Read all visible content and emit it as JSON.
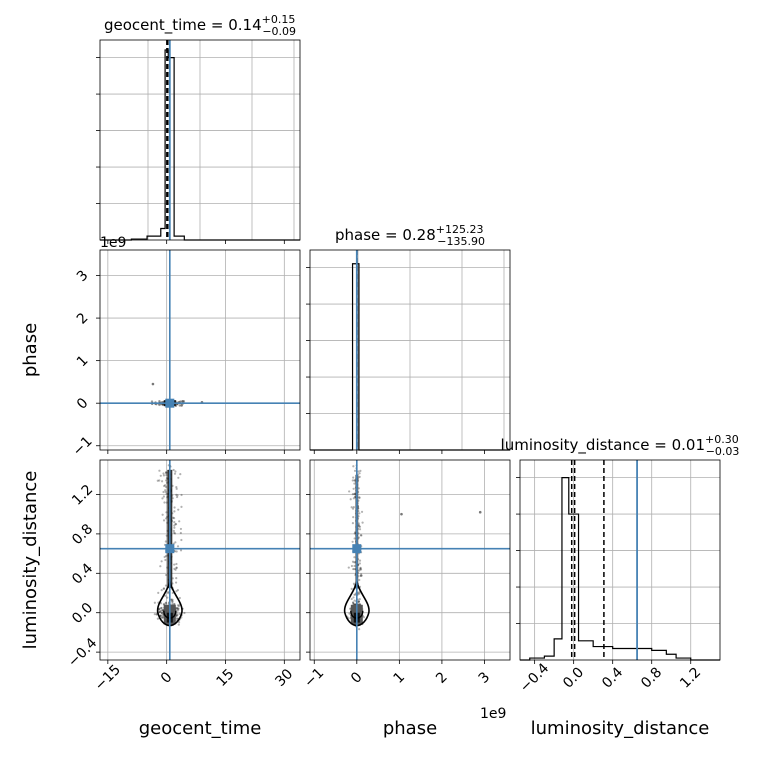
{
  "chart_data": {
    "type": "corner",
    "parameters": [
      "geocent_time",
      "phase",
      "luminosity_distance"
    ],
    "truth_color": "#4682b4",
    "line_color": "#000000",
    "panels": [
      {
        "kind": "hist",
        "row": 0,
        "col": 0,
        "parameter": "geocent_time",
        "title": "geocent_time = 0.14",
        "title_sup": "+0.15",
        "title_sub": "−0.09",
        "xlim": [
          -17,
          34
        ],
        "ylim": [
          0,
          1
        ],
        "quantiles": [
          0.05,
          0.14,
          0.29
        ],
        "truth": 0.8,
        "bins": [
          {
            "x0": -17,
            "x1": -13,
            "h": 0.0
          },
          {
            "x0": -13,
            "x1": -9,
            "h": 0.0
          },
          {
            "x0": -9,
            "x1": -5,
            "h": 0.005
          },
          {
            "x0": -5,
            "x1": -1.5,
            "h": 0.02
          },
          {
            "x0": -1.5,
            "x1": -0.4,
            "h": 0.06
          },
          {
            "x0": -0.4,
            "x1": 0.4,
            "h": 0.99
          },
          {
            "x0": 0.4,
            "x1": 1.9,
            "h": 0.95
          },
          {
            "x0": 1.9,
            "x1": 4.5,
            "h": 0.02
          },
          {
            "x0": 4.5,
            "x1": 34,
            "h": 0.0
          }
        ],
        "xticks": [],
        "yticks": []
      },
      {
        "kind": "scatter",
        "row": 1,
        "col": 0,
        "x": "geocent_time",
        "y": "phase",
        "xlim": [
          -17,
          34
        ],
        "ylim": [
          -1.1,
          3.6
        ],
        "truth_x": 0.8,
        "truth_y": 0.0,
        "cluster": {
          "cx": 0.5,
          "cy": 0.0,
          "sx": 2.5,
          "sy": 0.03
        },
        "offset_text": "1e9",
        "yticks": [
          "−1",
          "0",
          "1",
          "2",
          "3"
        ],
        "ytick_values": [
          -1,
          0,
          1,
          2,
          3
        ],
        "ylabel": "phase"
      },
      {
        "kind": "hist",
        "row": 1,
        "col": 1,
        "parameter": "phase",
        "title": "phase = 0.28",
        "title_sup": "+125.23",
        "title_sub": "−135.90",
        "xlim": [
          -1.1,
          3.6
        ],
        "ylim": [
          0,
          1
        ],
        "quantiles": [
          -0.0,
          0.0,
          0.0
        ],
        "truth": 0.0,
        "bins": [
          {
            "x0": -1.1,
            "x1": -0.1,
            "h": 0.0
          },
          {
            "x0": -0.1,
            "x1": 0.05,
            "h": 0.97
          },
          {
            "x0": 0.05,
            "x1": 3.6,
            "h": 0.0
          }
        ]
      },
      {
        "kind": "scatter",
        "row": 2,
        "col": 0,
        "x": "geocent_time",
        "y": "luminosity_distance",
        "xlim": [
          -17,
          34
        ],
        "ylim": [
          -0.48,
          1.55
        ],
        "truth_x": 0.8,
        "truth_y": 0.65,
        "xticks": [
          "−15",
          "0",
          "15",
          "30"
        ],
        "xtick_values": [
          -15,
          0,
          15,
          30
        ],
        "yticks": [
          "−0.4",
          "0.0",
          "0.4",
          "0.8",
          "1.2"
        ],
        "ytick_values": [
          -0.4,
          0,
          0.4,
          0.8,
          1.2
        ],
        "xlabel": "geocent_time",
        "ylabel": "luminosity_distance"
      },
      {
        "kind": "scatter",
        "row": 2,
        "col": 1,
        "x": "phase",
        "y": "luminosity_distance",
        "xlim": [
          -1.1,
          3.6
        ],
        "ylim": [
          -0.48,
          1.55
        ],
        "truth_x": 0.0,
        "truth_y": 0.65,
        "offset_text": "1e9",
        "xticks": [
          "−1",
          "0",
          "1",
          "2",
          "3"
        ],
        "xtick_values": [
          -1,
          0,
          1,
          2,
          3
        ],
        "xlabel": "phase"
      },
      {
        "kind": "hist",
        "row": 2,
        "col": 2,
        "parameter": "luminosity_distance",
        "title": "luminosity_distance = 0.01",
        "title_sup": "+0.30",
        "title_sub": "−0.03",
        "xlim": [
          -0.55,
          1.5
        ],
        "ylim": [
          0,
          1
        ],
        "quantiles": [
          -0.02,
          0.01,
          0.31
        ],
        "truth": 0.65,
        "bins": [
          {
            "x0": -0.55,
            "x1": -0.45,
            "h": 0.0
          },
          {
            "x0": -0.45,
            "x1": -0.3,
            "h": 0.01
          },
          {
            "x0": -0.3,
            "x1": -0.2,
            "h": 0.02
          },
          {
            "x0": -0.2,
            "x1": -0.12,
            "h": 0.11
          },
          {
            "x0": -0.12,
            "x1": -0.05,
            "h": 0.95
          },
          {
            "x0": -0.05,
            "x1": 0.05,
            "h": 0.76
          },
          {
            "x0": 0.05,
            "x1": 0.2,
            "h": 0.1
          },
          {
            "x0": 0.2,
            "x1": 0.4,
            "h": 0.07
          },
          {
            "x0": 0.4,
            "x1": 0.6,
            "h": 0.06
          },
          {
            "x0": 0.6,
            "x1": 0.8,
            "h": 0.06
          },
          {
            "x0": 0.8,
            "x1": 0.95,
            "h": 0.05
          },
          {
            "x0": 0.95,
            "x1": 1.05,
            "h": 0.03
          },
          {
            "x0": 1.05,
            "x1": 1.2,
            "h": 0.01
          },
          {
            "x0": 1.2,
            "x1": 1.5,
            "h": 0.0
          }
        ],
        "xticks": [
          "−0.4",
          "0.0",
          "0.4",
          "0.8",
          "1.2"
        ],
        "xtick_values": [
          -0.4,
          0,
          0.4,
          0.8,
          1.2
        ],
        "xlabel": "luminosity_distance"
      }
    ]
  }
}
